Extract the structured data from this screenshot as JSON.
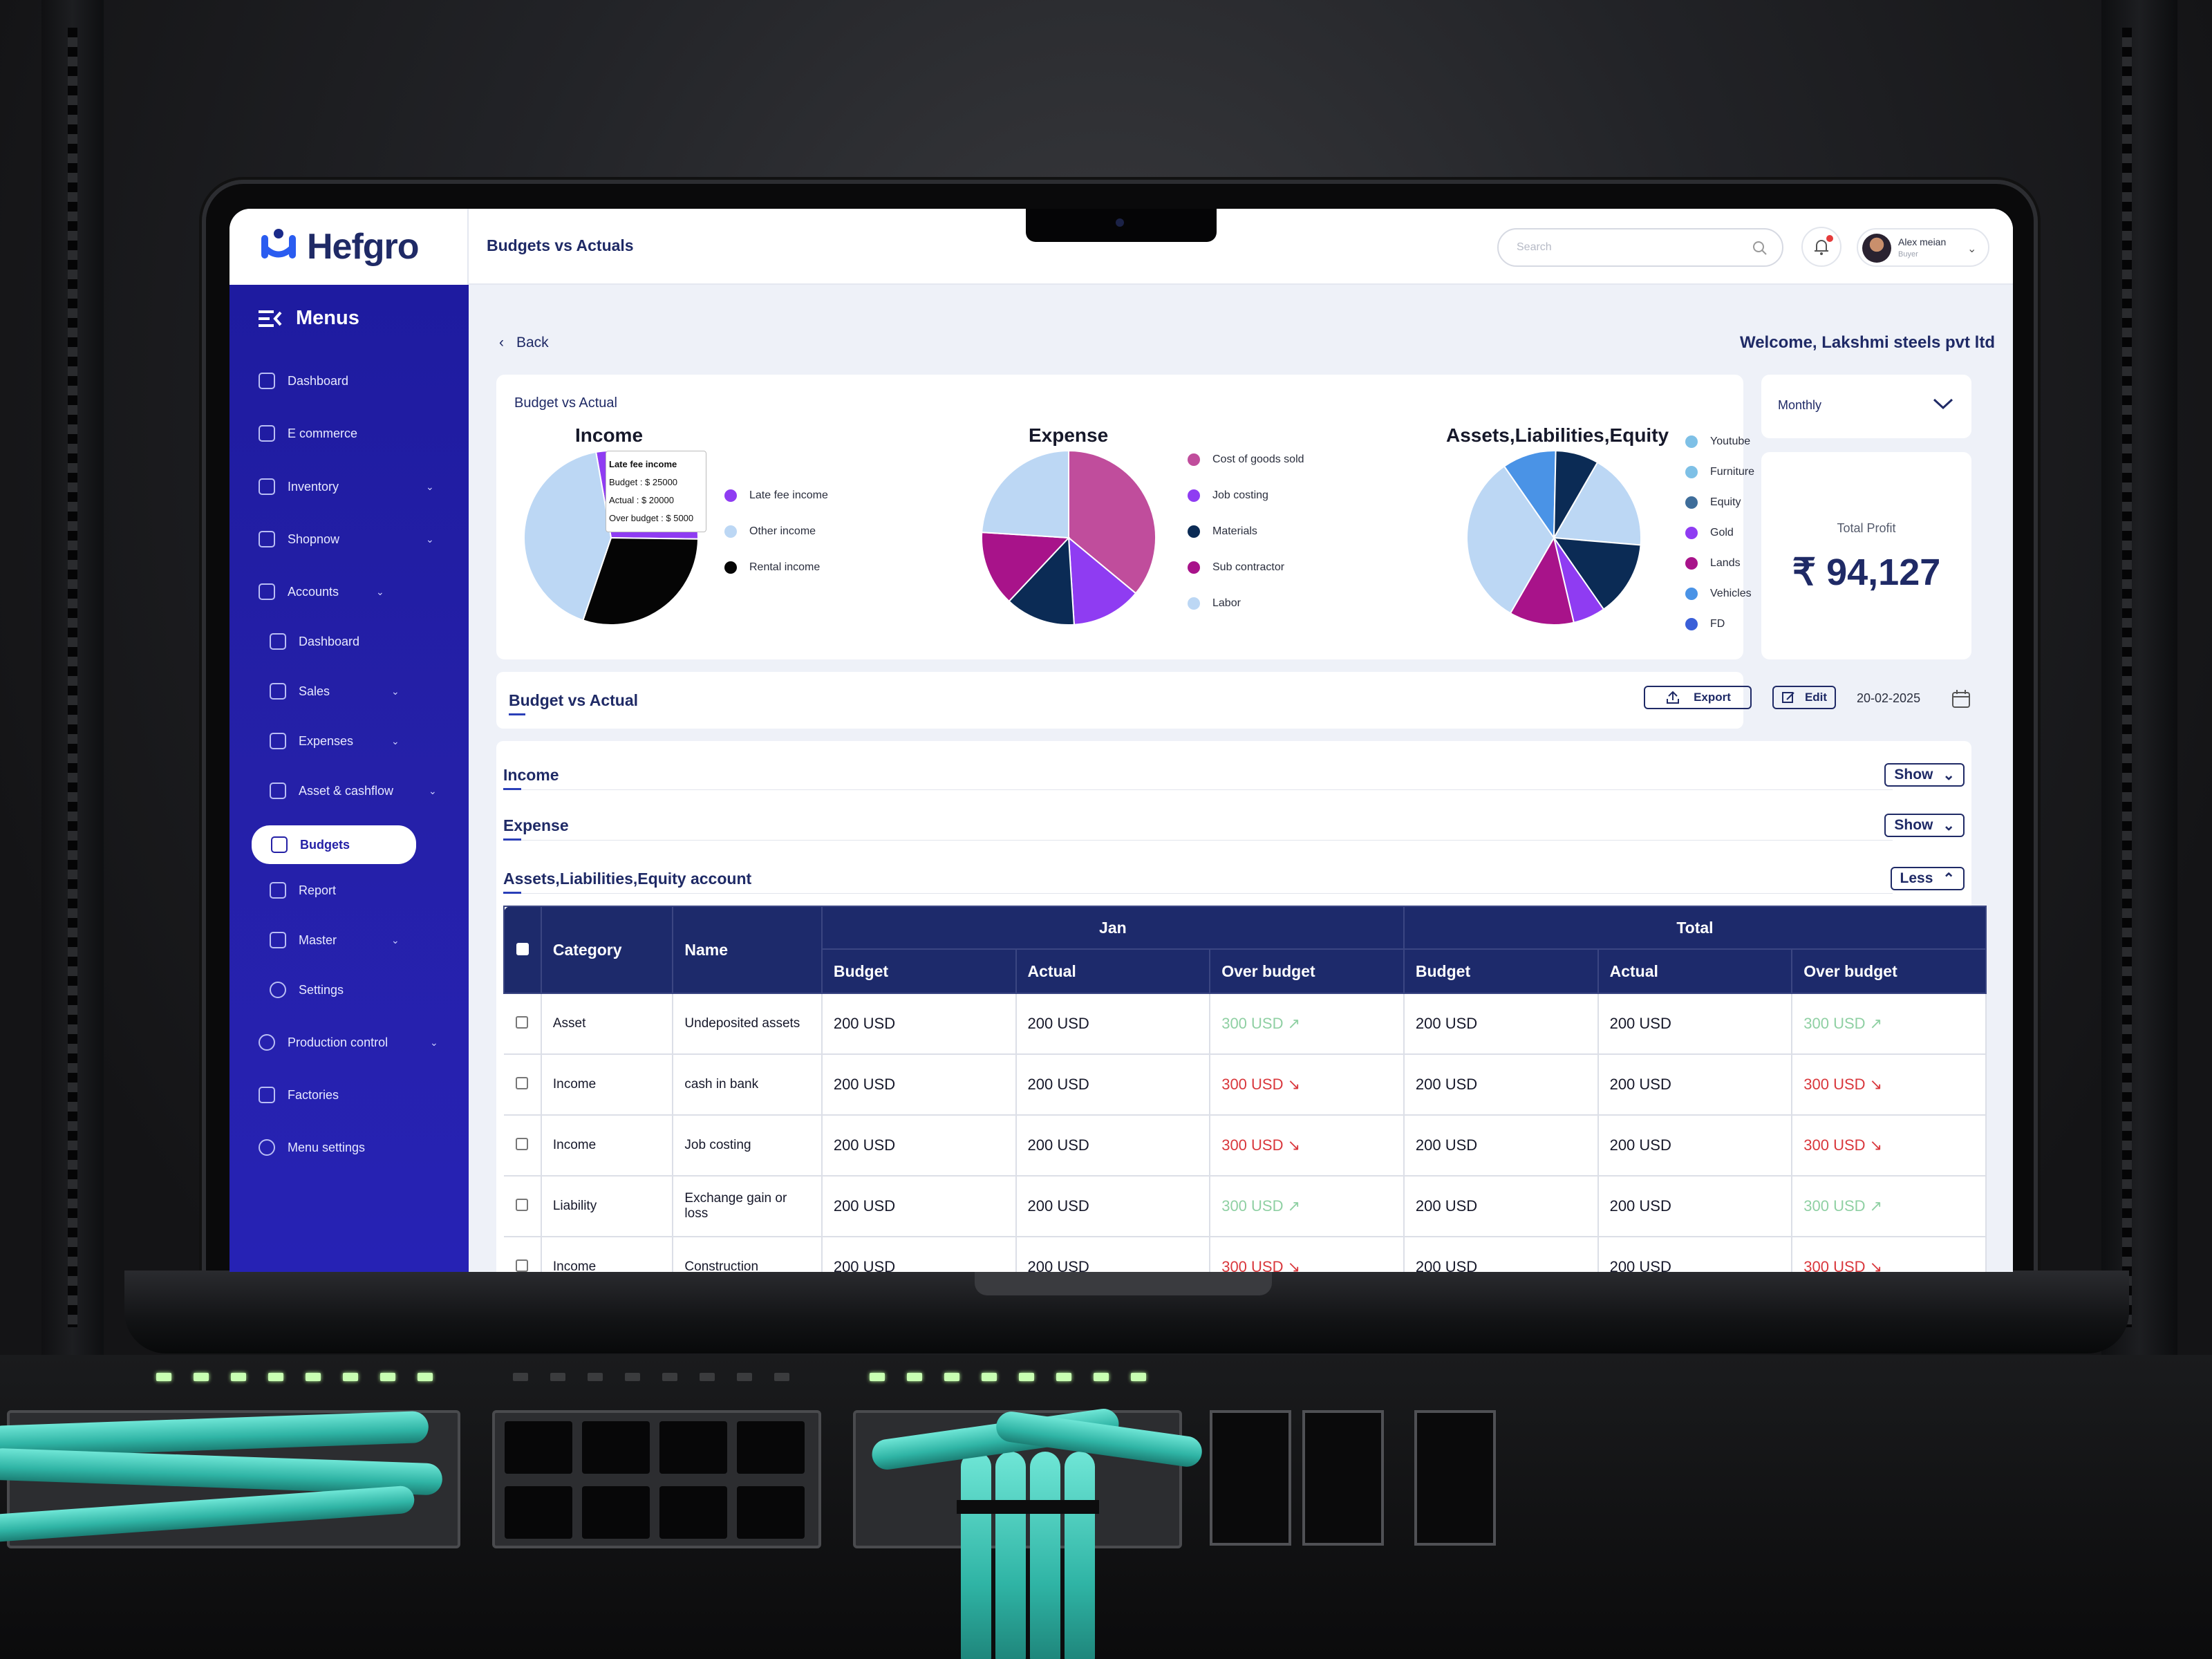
{
  "app": {
    "brand": "Hefgro",
    "page_title": "Budgets vs Actuals"
  },
  "topbar": {
    "search_placeholder": "Search",
    "user_name": "Alex meian",
    "user_role": "Buyer"
  },
  "sidebar": {
    "menus_label": "Menus",
    "items": [
      {
        "label": "Dashboard"
      },
      {
        "label": "E commerce"
      },
      {
        "label": "Inventory"
      },
      {
        "label": "Shopnow"
      },
      {
        "label": "Accounts"
      },
      {
        "label": "Dashboard"
      },
      {
        "label": "Sales"
      },
      {
        "label": "Expenses"
      },
      {
        "label": "Asset & cashflow"
      },
      {
        "label": "Budgets"
      },
      {
        "label": "Report"
      },
      {
        "label": "Master"
      },
      {
        "label": "Settings"
      },
      {
        "label": "Production control"
      },
      {
        "label": "Factories"
      },
      {
        "label": "Menu settings"
      }
    ]
  },
  "content": {
    "back_label": "Back",
    "welcome": "Welcome, Lakshmi steels pvt ltd",
    "summary_title": "Budget vs Actual",
    "period": "Monthly",
    "total_profit_label": "Total Profit",
    "total_profit_value": "₹ 94,127"
  },
  "charts": [
    {
      "title": "Income",
      "legend": [
        "Late fee income",
        "Other income",
        "Rental income"
      ],
      "tooltip": {
        "title": "Late fee income",
        "budget": "Budget : $ 25000",
        "actual": "Actual : $ 20000",
        "over": "Over budget : $ 5000"
      }
    },
    {
      "title": "Expense",
      "legend": [
        "Cost of goods sold",
        "Job costing",
        "Materials",
        "Sub contractor",
        "Labor"
      ]
    },
    {
      "title": "Assets,Liabilities,Equity",
      "legend": [
        "Youtube",
        "Furniture",
        "Equity",
        "Gold",
        "Lands",
        "Vehicles",
        "FD"
      ]
    }
  ],
  "chart_data": [
    {
      "type": "pie",
      "title": "Income",
      "categories": [
        "Late fee income",
        "Rental income",
        "Other income"
      ],
      "values": [
        28,
        30,
        42
      ],
      "colors": [
        "#8f3cf2",
        "#050505",
        "#bcd7f4"
      ]
    },
    {
      "type": "pie",
      "title": "Expense",
      "categories": [
        "Cost of goods sold",
        "Job costing",
        "Materials",
        "Sub contractor",
        "Labor"
      ],
      "values": [
        36,
        13,
        13,
        14,
        24
      ],
      "colors": [
        "#c04d9c",
        "#8f3cf2",
        "#0b2b55",
        "#a8138a",
        "#bcd7f4"
      ]
    },
    {
      "type": "pie",
      "title": "Assets,Liabilities,Equity",
      "categories": [
        "Furniture",
        "Equity",
        "Gold",
        "Lands",
        "Youtube",
        "Vehicles",
        "FD"
      ],
      "values": [
        18,
        14,
        6,
        12,
        32,
        10,
        8
      ],
      "colors": [
        "#bcd7f4",
        "#0b2b55",
        "#8f3cf2",
        "#a8138a",
        "#bcd7f4",
        "#4a93e6",
        "#0b2b55"
      ]
    }
  ],
  "toolbar": {
    "title": "Budget vs Actual",
    "export": "Export",
    "edit": "Edit",
    "date": "20-02-2025"
  },
  "sections": [
    {
      "name": "Income",
      "button": "Show"
    },
    {
      "name": "Expense",
      "button": "Show"
    },
    {
      "name": "Assets,Liabilities,Equity account",
      "button": "Less"
    }
  ],
  "table": {
    "headers": {
      "category": "Category",
      "name": "Name",
      "jan": "Jan",
      "total": "Total",
      "budget": "Budget",
      "actual": "Actual",
      "over": "Over budget"
    },
    "rows": [
      {
        "category": "Asset",
        "name": "Undeposited assets",
        "budget": "200 USD",
        "actual": "200 USD",
        "over": "300 USD",
        "t_budget": "200 USD",
        "t_actual": "200 USD",
        "t_over": "300 USD"
      },
      {
        "category": "Income",
        "name": "cash in bank",
        "budget": "200 USD",
        "actual": "200 USD",
        "over": "300 USD",
        "t_budget": "200 USD",
        "t_actual": "200 USD",
        "t_over": "300 USD"
      },
      {
        "category": "Income",
        "name": "Job costing",
        "budget": "200 USD",
        "actual": "200 USD",
        "over": "300 USD",
        "t_budget": "200 USD",
        "t_actual": "200 USD",
        "t_over": "300 USD"
      },
      {
        "category": "Liability",
        "name": "Exchange gain or loss",
        "budget": "200 USD",
        "actual": "200 USD",
        "over": "300 USD",
        "t_budget": "200 USD",
        "t_actual": "200 USD",
        "t_over": "300 USD"
      },
      {
        "category": "Income",
        "name": "Construction",
        "budget": "200 USD",
        "actual": "200 USD",
        "over": "300 USD",
        "t_budget": "200 USD",
        "t_actual": "200 USD",
        "t_over": "300 USD"
      }
    ]
  },
  "icons": {
    "up": "trend-up-icon",
    "down": "trend-down-icon"
  }
}
